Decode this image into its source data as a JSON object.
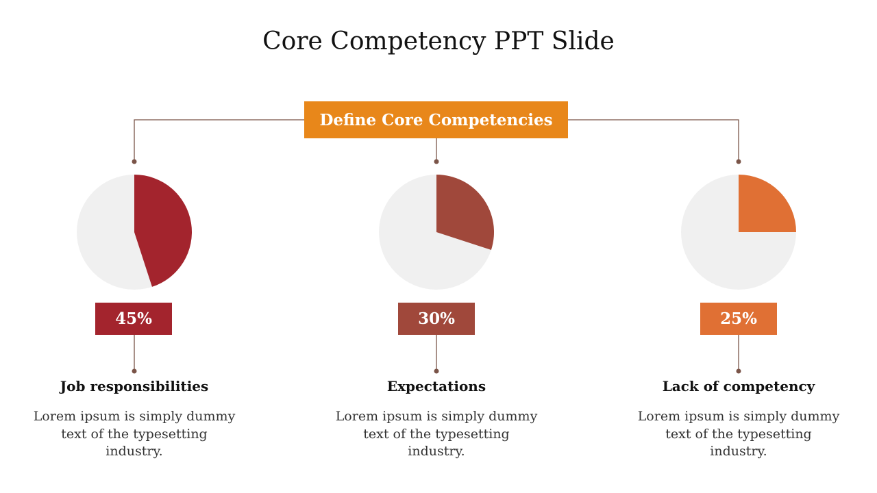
{
  "title": "Core Competency PPT Slide",
  "define": {
    "label": "Define Core Competencies",
    "color": "#E8871A"
  },
  "connector_color": "#7a5448",
  "pie_background": "#F0F0F0",
  "items": [
    {
      "percent_label": "45%",
      "value": 45,
      "color": "#A3242D",
      "heading": "Job responsibilities",
      "description": "Lorem ipsum is simply dummy text of the typesetting industry."
    },
    {
      "percent_label": "30%",
      "value": 30,
      "color": "#A0483B",
      "heading": "Expectations",
      "description": "Lorem ipsum is simply dummy text of the typesetting industry."
    },
    {
      "percent_label": "25%",
      "value": 25,
      "color": "#E07034",
      "heading": "Lack of competency",
      "description": "Lorem ipsum is simply dummy text of the typesetting industry."
    }
  ]
}
